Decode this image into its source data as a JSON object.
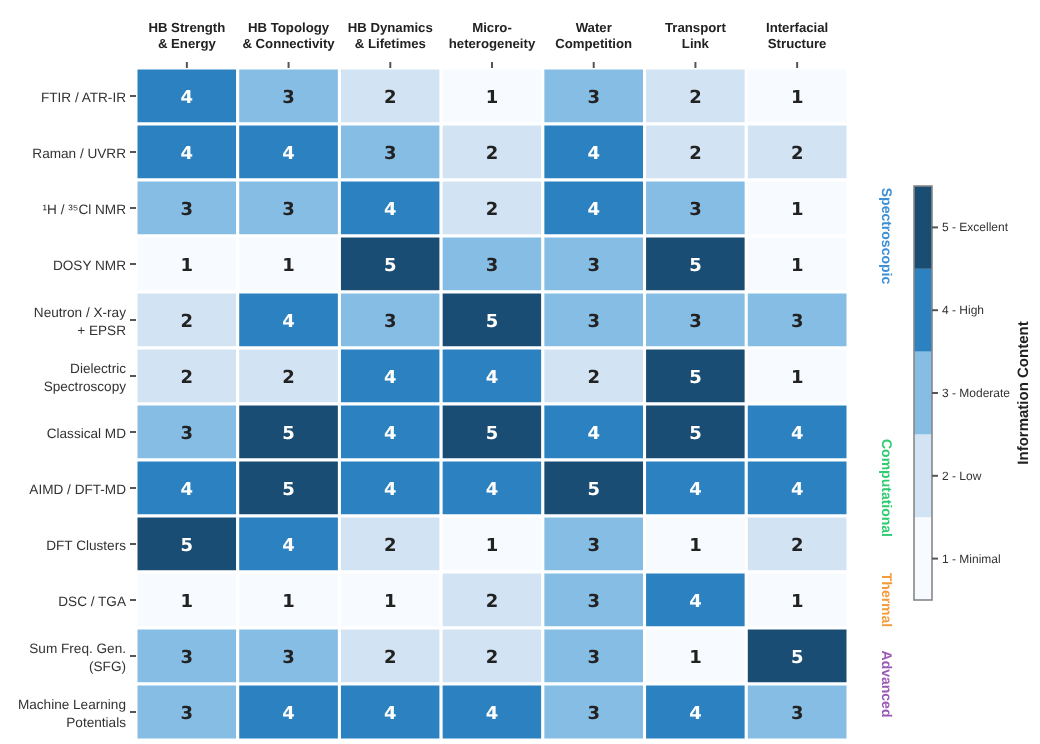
{
  "chart_data": {
    "type": "heatmap",
    "categories": [
      "HB Strength & Energy",
      "HB Topology & Connectivity",
      "HB Dynamics & Lifetimes",
      "Micro-heterogeneity",
      "Water Competition",
      "Transport Link",
      "Interfacial Structure"
    ],
    "y_categories": [
      "FTIR / ATR-IR",
      "Raman / UVRR",
      "¹H / ³⁵Cl NMR",
      "DOSY NMR",
      "Neutron / X-ray + EPSR",
      "Dielectric Spectroscopy",
      "Classical MD",
      "AIMD / DFT-MD",
      "DFT Clusters",
      "DSC / TGA",
      "Sum Freq. Gen. (SFG)",
      "Machine Learning Potentials"
    ],
    "cells": [
      [
        4,
        3,
        2,
        1,
        3,
        2,
        1
      ],
      [
        4,
        4,
        3,
        2,
        4,
        2,
        2
      ],
      [
        3,
        3,
        4,
        2,
        4,
        3,
        1
      ],
      [
        1,
        1,
        5,
        3,
        3,
        5,
        1
      ],
      [
        2,
        4,
        3,
        5,
        3,
        3,
        3
      ],
      [
        2,
        2,
        4,
        4,
        2,
        5,
        1
      ],
      [
        3,
        5,
        4,
        5,
        4,
        5,
        4
      ],
      [
        4,
        5,
        4,
        4,
        5,
        4,
        4
      ],
      [
        5,
        4,
        2,
        1,
        3,
        1,
        2
      ],
      [
        1,
        1,
        1,
        2,
        3,
        4,
        1
      ],
      [
        3,
        3,
        2,
        2,
        3,
        1,
        5
      ],
      [
        3,
        4,
        4,
        4,
        3,
        4,
        3
      ]
    ],
    "data_labels": true,
    "clabel": "Information Content",
    "clim": [
      0.5,
      5.5
    ],
    "cticks": [
      {
        "value": 1,
        "label": "1 - Minimal"
      },
      {
        "value": 2,
        "label": "2 - Low"
      },
      {
        "value": 3,
        "label": "3 - Moderate"
      },
      {
        "value": 4,
        "label": "4 - High"
      },
      {
        "value": 5,
        "label": "5 - Excellent"
      }
    ],
    "annotations": [
      "Spectroscopic",
      "Computational",
      "Thermal",
      "Advanced"
    ]
  }
}
